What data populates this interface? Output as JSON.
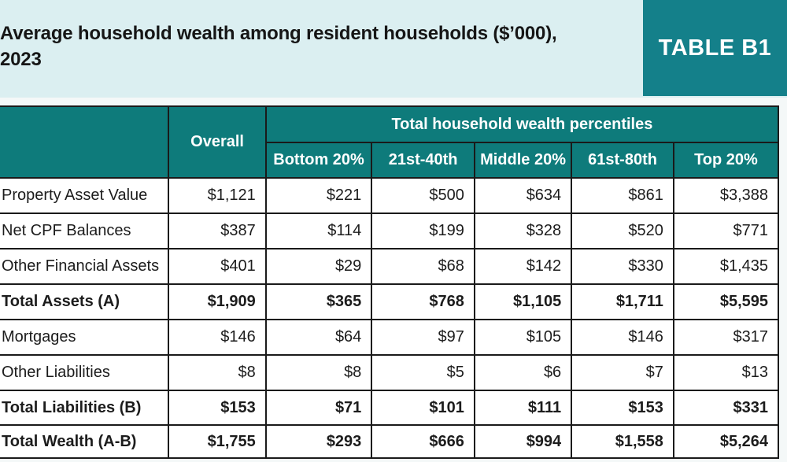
{
  "title": {
    "line1": "Average household wealth among resident households ($’000),",
    "line2": "2023"
  },
  "badge": {
    "label": "TABLE B1"
  },
  "table": {
    "corner_label": "",
    "overall_label": "Overall",
    "group_label": "Total household wealth percentiles",
    "percentile_cols": [
      "Bottom 20%",
      "21st-40th",
      "Middle 20%",
      "61st-80th",
      "Top 20%"
    ],
    "rows": [
      {
        "label": "Property Asset Value",
        "bold": false,
        "values": [
          "$1,121",
          "$221",
          "$500",
          "$634",
          "$861",
          "$3,388"
        ]
      },
      {
        "label": "Net CPF Balances",
        "bold": false,
        "values": [
          "$387",
          "$114",
          "$199",
          "$328",
          "$520",
          "$771"
        ]
      },
      {
        "label": "Other Financial Assets",
        "bold": false,
        "values": [
          "$401",
          "$29",
          "$68",
          "$142",
          "$330",
          "$1,435"
        ]
      },
      {
        "label": "Total Assets (A)",
        "bold": true,
        "values": [
          "$1,909",
          "$365",
          "$768",
          "$1,105",
          "$1,711",
          "$5,595"
        ]
      },
      {
        "label": "Mortgages",
        "bold": false,
        "values": [
          "$146",
          "$64",
          "$97",
          "$105",
          "$146",
          "$317"
        ]
      },
      {
        "label": "Other Liabilities",
        "bold": false,
        "values": [
          "$8",
          "$8",
          "$5",
          "$6",
          "$7",
          "$13"
        ]
      },
      {
        "label": "Total Liabilities (B)",
        "bold": true,
        "values": [
          "$153",
          "$71",
          "$101",
          "$111",
          "$153",
          "$331"
        ]
      },
      {
        "label": "Total Wealth (A-B)",
        "bold": true,
        "values": [
          "$1,755",
          "$293",
          "$666",
          "$994",
          "$1,558",
          "$5,264"
        ]
      }
    ]
  },
  "colors": {
    "band_blue": "#DBEFF1",
    "header_teal": "#0E7B7B",
    "badge_teal": "#14808A",
    "border_black": "#1A1A1A",
    "text_dark": "#1C1C1C"
  },
  "chart_data": {
    "type": "table",
    "title": "Average household wealth among resident households ($’000), 2023",
    "units": "$’000",
    "column_group_label": "Total household wealth percentiles",
    "columns": [
      "Overall",
      "Bottom 20%",
      "21st-40th",
      "Middle 20%",
      "61st-80th",
      "Top 20%"
    ],
    "rows": [
      {
        "label": "Property Asset Value",
        "values": [
          1121,
          221,
          500,
          634,
          861,
          3388
        ]
      },
      {
        "label": "Net CPF Balances",
        "values": [
          387,
          114,
          199,
          328,
          520,
          771
        ]
      },
      {
        "label": "Other Financial Assets",
        "values": [
          401,
          29,
          68,
          142,
          330,
          1435
        ]
      },
      {
        "label": "Total Assets (A)",
        "values": [
          1909,
          365,
          768,
          1105,
          1711,
          5595
        ]
      },
      {
        "label": "Mortgages",
        "values": [
          146,
          64,
          97,
          105,
          146,
          317
        ]
      },
      {
        "label": "Other Liabilities",
        "values": [
          8,
          8,
          5,
          6,
          7,
          13
        ]
      },
      {
        "label": "Total Liabilities (B)",
        "values": [
          153,
          71,
          101,
          111,
          153,
          331
        ]
      },
      {
        "label": "Total Wealth (A-B)",
        "values": [
          1755,
          293,
          666,
          994,
          1558,
          5264
        ]
      }
    ]
  }
}
